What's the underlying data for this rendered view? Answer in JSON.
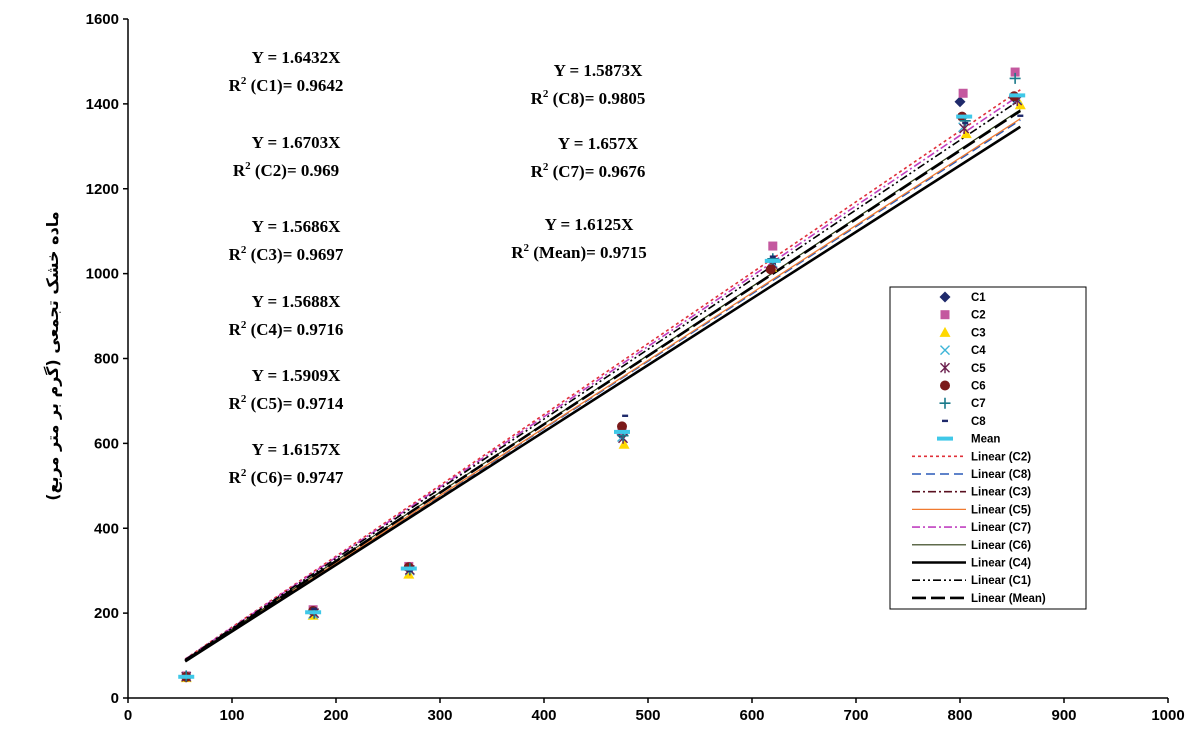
{
  "chart_data": {
    "type": "scatter",
    "title": "",
    "xlabel": "",
    "ylabel": "ماده خشک تجمعی (گرم بر متر مربع)",
    "xlim": [
      0,
      1000
    ],
    "ylim": [
      0,
      1600
    ],
    "xticks": [
      "0",
      "100",
      "200",
      "300",
      "400",
      "500",
      "600",
      "700",
      "800",
      "900",
      "1000"
    ],
    "yticks": [
      "0",
      "200",
      "400",
      "600",
      "800",
      "1000",
      "1200",
      "1400",
      "1600"
    ],
    "grid": false,
    "legend_position": "right",
    "series": [
      {
        "name": "C1",
        "marker": "diamond",
        "color": "#1f2a6b",
        "x": [
          55,
          178,
          270,
          475,
          620,
          800,
          852
        ],
        "y": [
          50,
          205,
          305,
          620,
          1030,
          1405,
          1415
        ]
      },
      {
        "name": "C2",
        "marker": "square",
        "color": "#c4589f",
        "x": [
          56,
          178,
          270,
          475,
          620,
          803,
          853
        ],
        "y": [
          52,
          208,
          310,
          630,
          1065,
          1425,
          1475
        ]
      },
      {
        "name": "C3",
        "marker": "triangle",
        "color": "#ffd800",
        "x": [
          56,
          178,
          270,
          477,
          619,
          806,
          858
        ],
        "y": [
          48,
          195,
          292,
          598,
          1015,
          1330,
          1398
        ]
      },
      {
        "name": "C4",
        "marker": "x",
        "color": "#3fb6d8",
        "x": [
          56,
          178,
          271,
          475,
          620,
          803,
          855
        ],
        "y": [
          50,
          198,
          300,
          615,
          1025,
          1345,
          1410
        ]
      },
      {
        "name": "C5",
        "marker": "star",
        "color": "#6b1f4e",
        "x": [
          56,
          179,
          271,
          476,
          620,
          804,
          855
        ],
        "y": [
          50,
          200,
          302,
          612,
          1022,
          1342,
          1408
        ]
      },
      {
        "name": "C6",
        "marker": "circle",
        "color": "#7b1a1a",
        "x": [
          56,
          178,
          270,
          475,
          618,
          802,
          852
        ],
        "y": [
          50,
          205,
          308,
          640,
          1010,
          1370,
          1418
        ]
      },
      {
        "name": "C7",
        "marker": "plus",
        "color": "#1a7a8a",
        "x": [
          56,
          179,
          271,
          476,
          620,
          805,
          853
        ],
        "y": [
          52,
          200,
          305,
          618,
          1035,
          1360,
          1460
        ]
      },
      {
        "name": "C8",
        "marker": "dash",
        "color": "#1f2a6b",
        "x": [
          56,
          179,
          271,
          478,
          620,
          805,
          858
        ],
        "y": [
          50,
          210,
          300,
          665,
          1040,
          1355,
          1372
        ]
      },
      {
        "name": "Mean",
        "marker": "mean",
        "color": "#3fc8e8",
        "x": [
          56,
          178,
          270,
          475,
          620,
          804,
          855
        ],
        "y": [
          50,
          202,
          305,
          627,
          1030,
          1370,
          1420
        ]
      }
    ],
    "trendlines": [
      {
        "name": "Linear (C2)",
        "slope": 1.6703,
        "color": "#e0303a",
        "dash": "3,3",
        "width": 1.6
      },
      {
        "name": "Linear (C8)",
        "slope": 1.5873,
        "color": "#2a5ab8",
        "dash": "9,5",
        "width": 1.6
      },
      {
        "name": "Linear (C3)",
        "slope": 1.5686,
        "color": "#5a1020",
        "dash": "8,3,2,3",
        "width": 1.6
      },
      {
        "name": "Linear (C5)",
        "slope": 1.5909,
        "color": "#f07a30",
        "dash": "",
        "width": 1.3
      },
      {
        "name": "Linear (C7)",
        "slope": 1.657,
        "color": "#c040c0",
        "dash": "8,3,2,3",
        "width": 1.6
      },
      {
        "name": "Linear (C6)",
        "slope": 1.6157,
        "color": "#2a3a10",
        "dash": "",
        "width": 1.2
      },
      {
        "name": "Linear (C4)",
        "slope": 1.5688,
        "color": "#000000",
        "dash": "",
        "width": 2.6
      },
      {
        "name": "Linear (C1)",
        "slope": 1.6432,
        "color": "#000000",
        "dash": "8,3,2,3,2,3",
        "width": 1.6
      },
      {
        "name": "Linear (Mean)",
        "slope": 1.6125,
        "color": "#000000",
        "dash": "14,5",
        "width": 2.6
      }
    ],
    "trend_range": [
      55,
      858
    ],
    "annotations": [
      {
        "eq": "Y = 1.6432X",
        "r2_label": "(C1)= 0.9642"
      },
      {
        "eq": "Y = 1.6703X",
        "r2_label": "(C2)= 0.969"
      },
      {
        "eq": "Y = 1.5686X",
        "r2_label": "(C3)= 0.9697"
      },
      {
        "eq": "Y = 1.5688X",
        "r2_label": "(C4)= 0.9716"
      },
      {
        "eq": "Y = 1.5909X",
        "r2_label": "(C5)= 0.9714"
      },
      {
        "eq": "Y = 1.6157X",
        "r2_label": "(C6)= 0.9747"
      },
      {
        "eq": "Y = 1.5873X",
        "r2_label": "(C8)= 0.9805"
      },
      {
        "eq": "Y = 1.657X",
        "r2_label": "(C7)= 0.9676"
      },
      {
        "eq": "Y = 1.6125X",
        "r2_label": "(Mean)= 0.9715"
      }
    ],
    "r2_prefix": "R",
    "r2_sup": "2"
  }
}
